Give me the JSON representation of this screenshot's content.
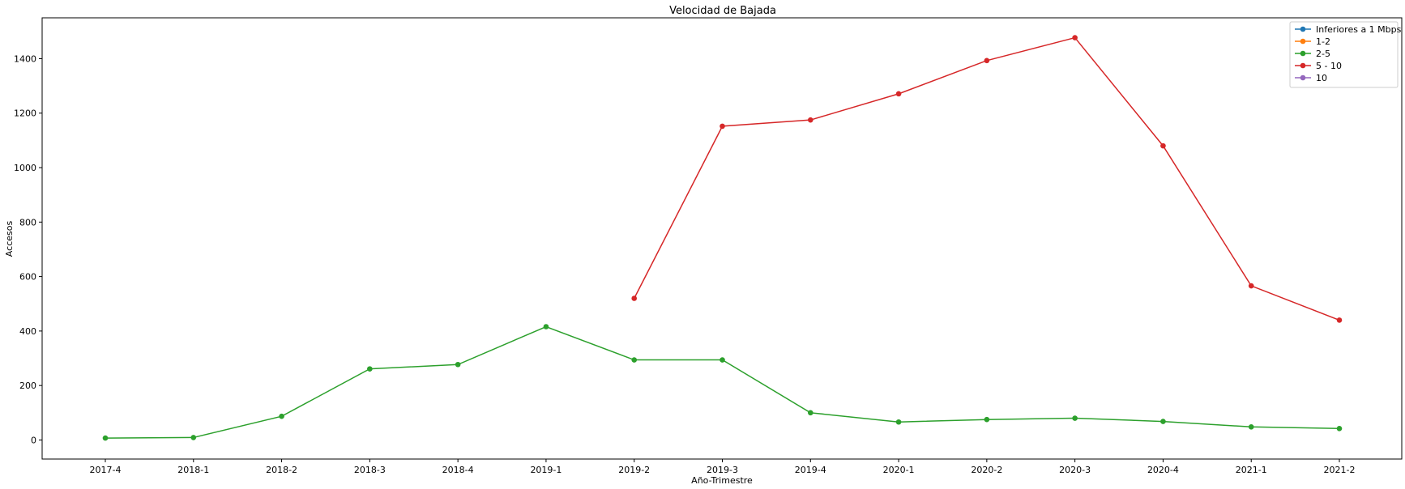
{
  "chart_data": {
    "type": "line",
    "title": "Velocidad de Bajada",
    "xlabel": "Año-Trimestre",
    "ylabel": "Accesos",
    "categories": [
      "2017-4",
      "2018-1",
      "2018-2",
      "2018-3",
      "2018-4",
      "2019-1",
      "2019-2",
      "2019-3",
      "2019-4",
      "2020-1",
      "2020-2",
      "2020-3",
      "2020-4",
      "2021-1",
      "2021-2"
    ],
    "ylim": [
      -70,
      1550
    ],
    "yticks": [
      0,
      200,
      400,
      600,
      800,
      1000,
      1200,
      1400
    ],
    "grid": false,
    "legend_position": "top-right",
    "series": [
      {
        "name": "Inferiores a 1 Mbps",
        "color": "#1f77b4",
        "values": [
          null,
          null,
          null,
          null,
          null,
          null,
          null,
          null,
          null,
          null,
          null,
          null,
          null,
          null,
          null
        ]
      },
      {
        "name": "1-2",
        "color": "#ff7f0e",
        "values": [
          null,
          null,
          null,
          null,
          null,
          null,
          null,
          null,
          null,
          null,
          null,
          null,
          null,
          null,
          null
        ]
      },
      {
        "name": "2-5",
        "color": "#2ca02c",
        "values": [
          7,
          9,
          87,
          261,
          277,
          416,
          294,
          294,
          100,
          66,
          75,
          80,
          68,
          48,
          42
        ]
      },
      {
        "name": "5 - 10",
        "color": "#d62728",
        "values": [
          null,
          null,
          null,
          null,
          null,
          null,
          520,
          1152,
          1175,
          1271,
          1393,
          1477,
          1080,
          566,
          440
        ]
      },
      {
        "name": "10",
        "color": "#9467bd",
        "values": [
          null,
          null,
          null,
          null,
          null,
          null,
          null,
          null,
          null,
          null,
          null,
          null,
          null,
          null,
          null
        ]
      }
    ]
  }
}
